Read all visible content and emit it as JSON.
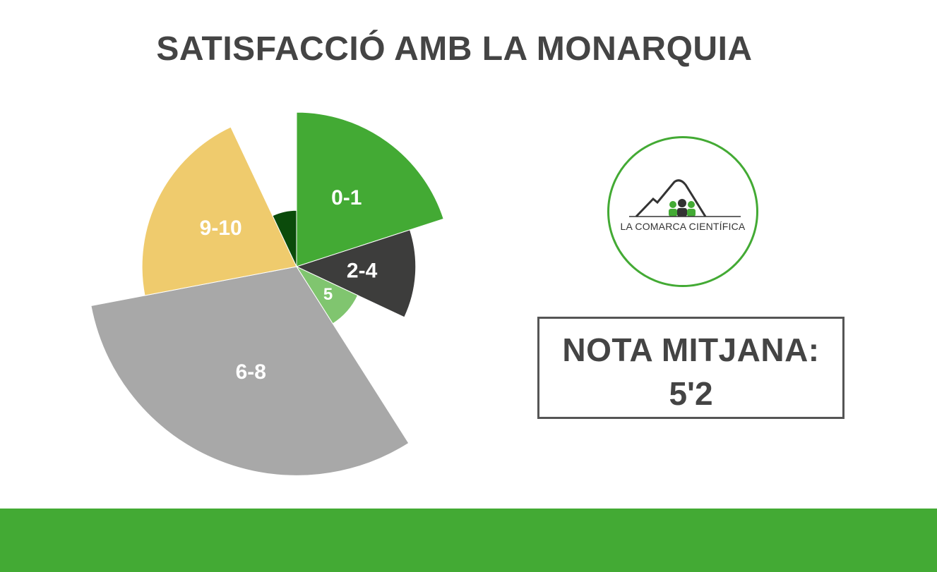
{
  "colors": {
    "green": "#43aa34",
    "dark_green": "#0b4b0b",
    "light_green": "#80c56f",
    "dark_gray": "#3d3d3c",
    "light_gray": "#a8a8a8",
    "yellow": "#efcb6d",
    "title": "#444444"
  },
  "chart_data": {
    "type": "pie",
    "title": "SATISFACCIÓ AMB LA MONARQUIA",
    "variant": "polar-area",
    "slices": [
      {
        "label": "0-1",
        "angle_fraction": 0.2,
        "radius_fraction": 0.96,
        "color": "#43aa34"
      },
      {
        "label": "2-4",
        "angle_fraction": 0.12,
        "radius_fraction": 0.74,
        "color": "#3d3d3c"
      },
      {
        "label": "5",
        "angle_fraction": 0.09,
        "radius_fraction": 0.42,
        "color": "#80c56f"
      },
      {
        "label": "6-8",
        "angle_fraction": 0.31,
        "radius_fraction": 1.3,
        "color": "#a8a8a8"
      },
      {
        "label": "9-10",
        "angle_fraction": 0.21,
        "radius_fraction": 0.96,
        "color": "#efcb6d"
      },
      {
        "label": "",
        "angle_fraction": 0.07,
        "radius_fraction": 0.35,
        "color": "#0b4b0b"
      }
    ]
  },
  "logo": {
    "text": "LA COMARCA CIENTÍFICA"
  },
  "summary": {
    "label": "NOTA MITJANA:",
    "value": "5'2"
  }
}
